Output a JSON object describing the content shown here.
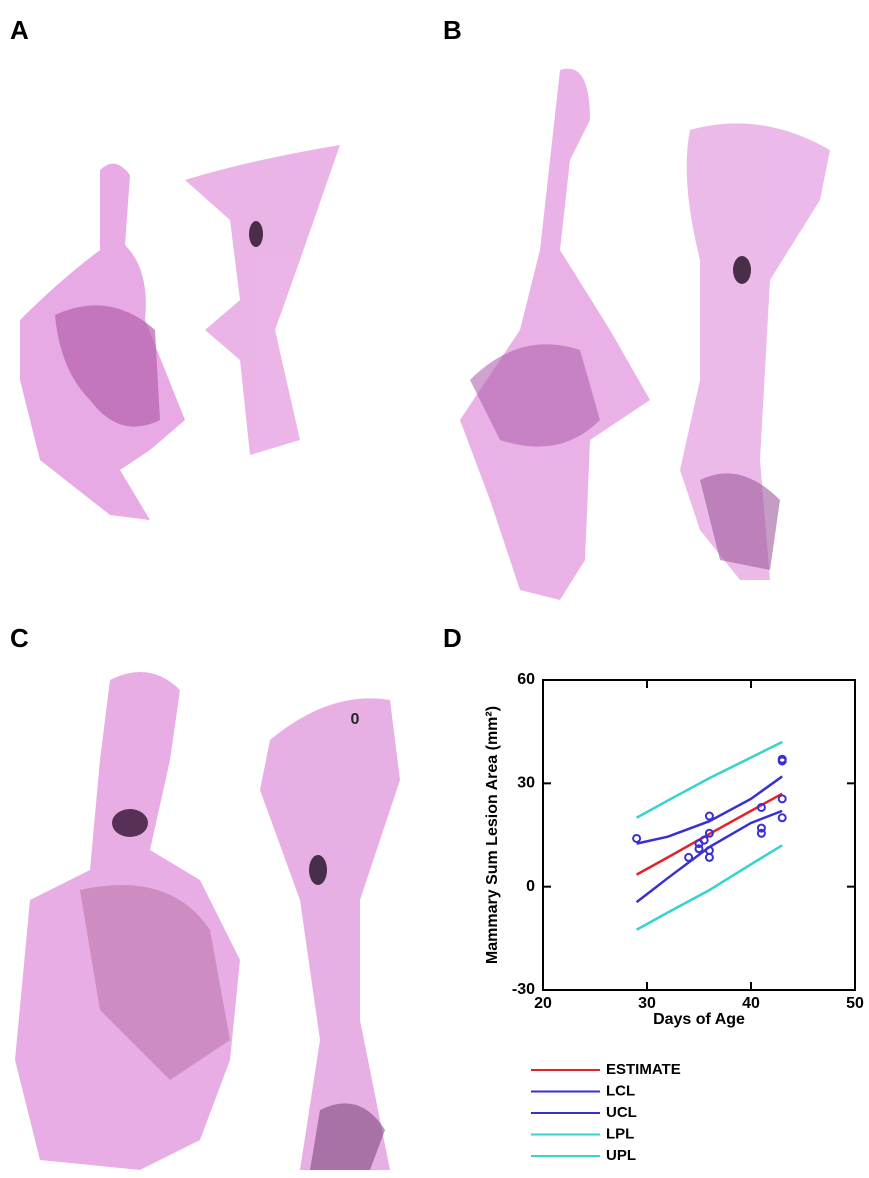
{
  "panels": [
    {
      "label": "A"
    },
    {
      "label": "B"
    },
    {
      "label": "C",
      "annotation": "0"
    },
    {
      "label": "D"
    }
  ],
  "chart_data": {
    "type": "line",
    "x_label": "Days of Age",
    "y_label": "Mammary Sum Lesion Area (mm²)",
    "xlim": [
      20,
      50
    ],
    "xticks": [
      20,
      30,
      40,
      50
    ],
    "ylim": [
      -30,
      60
    ],
    "yticks": [
      -30,
      0,
      30,
      60
    ],
    "x": [
      29,
      32,
      36,
      40,
      43
    ],
    "series": [
      {
        "name": "ESTIMATE",
        "color": "#e0242a",
        "values": [
          3.5,
          8.5,
          15.3,
          22,
          27
        ]
      },
      {
        "name": "LCL",
        "color": "#3a2fd0",
        "values": [
          -4.5,
          2.5,
          11.5,
          18.5,
          22
        ]
      },
      {
        "name": "UCL",
        "color": "#3a2fd0",
        "values": [
          12.5,
          14.5,
          19,
          25.5,
          32
        ]
      },
      {
        "name": "LPL",
        "color": "#37d3cf",
        "values": [
          -12.5,
          -7.5,
          -1,
          6.5,
          12
        ]
      },
      {
        "name": "UPL",
        "color": "#37d3cf",
        "values": [
          20,
          25,
          31.5,
          37.5,
          42
        ]
      }
    ],
    "points": {
      "type": "scatter",
      "color": "#3a2fd0",
      "x": [
        29,
        34,
        35,
        35,
        35.5,
        36,
        36,
        36,
        36,
        41,
        41,
        41,
        43,
        43,
        43,
        43
      ],
      "values": [
        14,
        8.5,
        11,
        12.5,
        13.5,
        10.5,
        15.5,
        20.5,
        8.5,
        23,
        17,
        15.5,
        37,
        36.5,
        25.5,
        20
      ]
    }
  }
}
